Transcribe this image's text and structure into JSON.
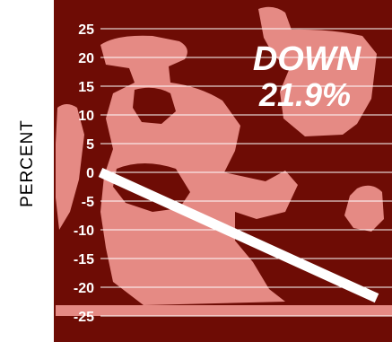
{
  "chart_data": {
    "type": "line",
    "title": "",
    "xlabel": "",
    "ylabel": "PERCENT",
    "ylim": [
      -25,
      25
    ],
    "yticks": [
      25,
      20,
      15,
      10,
      5,
      0,
      -5,
      -10,
      -15,
      -20,
      -25
    ],
    "ytick_labels": [
      "25",
      "20",
      "15",
      "10",
      "5",
      "0",
      "-5",
      "-10",
      "-15",
      "-20",
      "-25"
    ],
    "grid": true,
    "series": [
      {
        "x": [
          0,
          1
        ],
        "values": [
          0,
          -21.9
        ]
      }
    ],
    "annotation": {
      "line1": "DOWN",
      "line2": "21.9%"
    }
  },
  "colors": {
    "background": "#6e0c05",
    "illustration": "#e58a84",
    "gridline": "#ffffff",
    "series_line": "#ffffff",
    "tick_text": "#ffffff"
  }
}
